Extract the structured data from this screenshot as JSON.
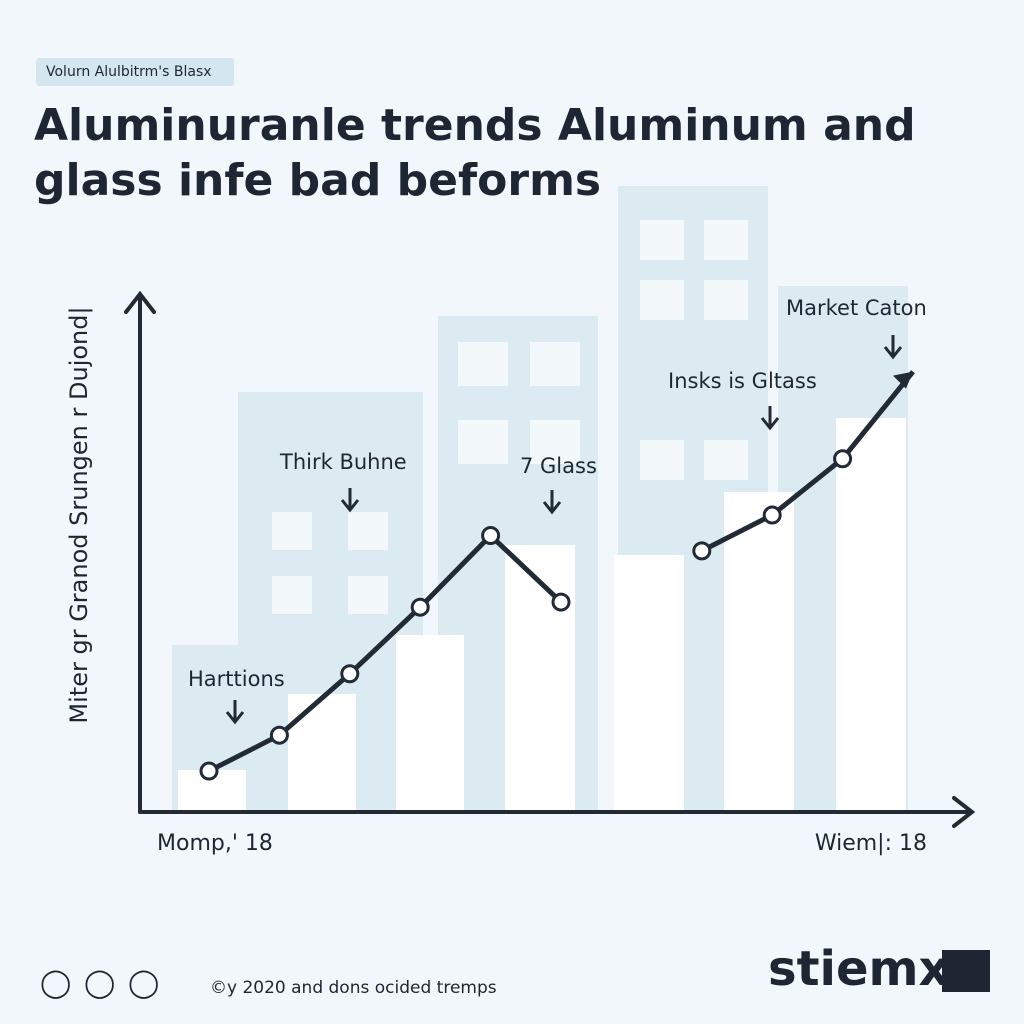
{
  "chart_data": {
    "type": "line",
    "subtitle": "Volurn Alulbitrm's Blasx",
    "title_lines": [
      "Aluminuranle trends Aluminum and",
      "glass infe bad beforms"
    ],
    "y_label": "Miter gr Granod Srungen r Dujond|",
    "categories": [
      "Momp,' 18",
      null,
      null,
      null,
      null,
      null,
      null,
      null,
      null,
      null,
      "Wiem|: 18"
    ],
    "series": [
      {
        "color": "#222a36",
        "values": [
          8,
          15,
          27,
          40,
          54,
          41,
          null,
          51,
          58,
          69,
          86
        ]
      }
    ],
    "ylim": [
      0,
      100
    ],
    "annotations": [
      "Harttions",
      "Thirk Buhne",
      "7 Glass",
      "Insks is Gltass",
      "Market Caton"
    ]
  },
  "footer": {
    "copyright": "©y 2020 and dons ocided tremps",
    "brand": "stiemx"
  }
}
